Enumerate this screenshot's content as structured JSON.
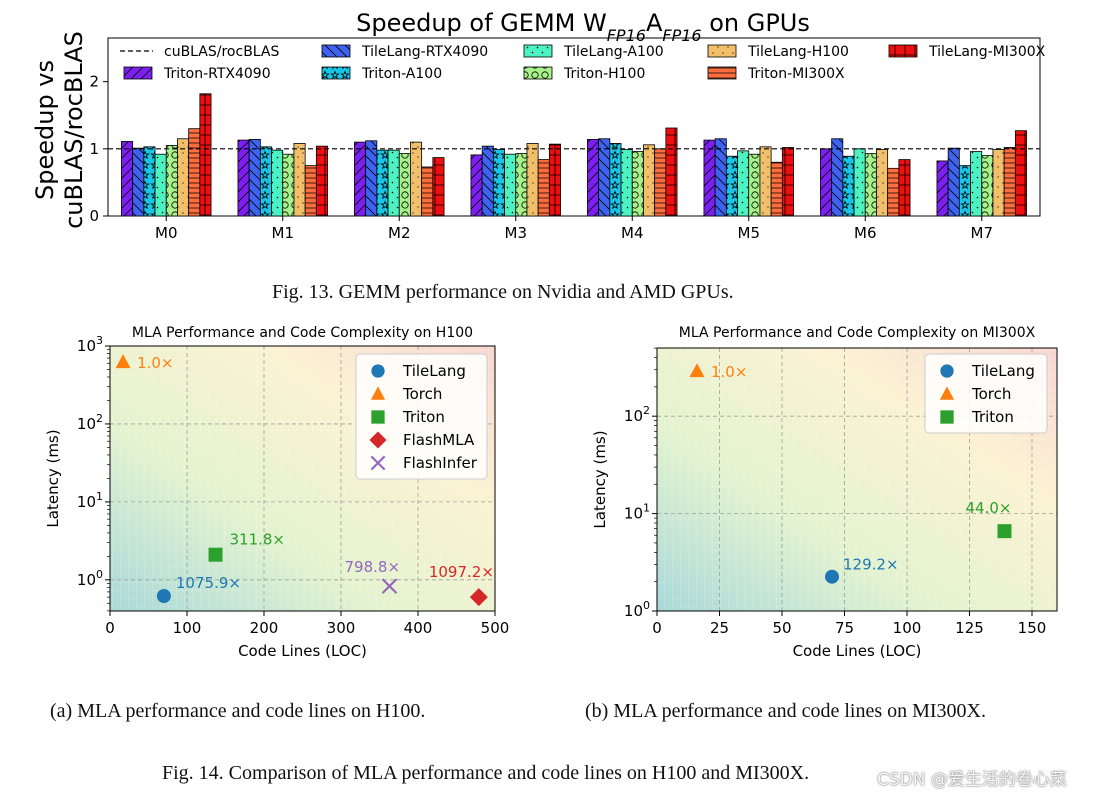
{
  "fig13": {
    "caption": "Fig. 13.  GEMM performance on Nvidia and AMD GPUs.",
    "chart_data": {
      "type": "bar",
      "title_prefix": "Speedup of GEMM W",
      "title_sub1": "FP16",
      "title_mid": "A",
      "title_sub2": "FP16",
      "title_suffix": " on GPUs",
      "ylabel_line1": "Speedup vs",
      "ylabel_line2": "cuBLAS/rocBLAS",
      "ylim": [
        0,
        2.65
      ],
      "yticks": [
        "0",
        "1",
        "2"
      ],
      "baseline": 1.0,
      "baseline_label": "cuBLAS/rocBLAS",
      "categories": [
        "M0",
        "M1",
        "M2",
        "M3",
        "M4",
        "M5",
        "M6",
        "M7"
      ],
      "series": [
        {
          "name": "Triton-RTX4090",
          "color": "#7e1ff2",
          "hatch": "diag",
          "values": [
            1.11,
            1.13,
            1.1,
            0.91,
            1.14,
            1.13,
            1.0,
            0.82
          ]
        },
        {
          "name": "TileLang-RTX4090",
          "color": "#3d63f0",
          "hatch": "back",
          "values": [
            1.01,
            1.14,
            1.12,
            1.04,
            1.15,
            1.15,
            1.15,
            1.01
          ]
        },
        {
          "name": "Triton-A100",
          "color": "#19c6e6",
          "hatch": "star",
          "values": [
            1.03,
            1.03,
            0.98,
            0.99,
            1.08,
            0.89,
            0.89,
            0.75
          ]
        },
        {
          "name": "TileLang-A100",
          "color": "#4bf2c2",
          "hatch": "dots",
          "values": [
            0.92,
            0.98,
            0.98,
            0.92,
            0.99,
            0.97,
            1.0,
            0.96
          ]
        },
        {
          "name": "Triton-H100",
          "color": "#a7f28a",
          "hatch": "circle",
          "values": [
            1.05,
            0.92,
            0.93,
            0.93,
            0.96,
            0.92,
            0.93,
            0.9
          ]
        },
        {
          "name": "TileLang-H100",
          "color": "#f2c06b",
          "hatch": "pdots",
          "values": [
            1.15,
            1.08,
            1.1,
            1.08,
            1.06,
            1.03,
            0.99,
            0.99
          ]
        },
        {
          "name": "Triton-MI300X",
          "color": "#fd6d3e",
          "hatch": "hline",
          "values": [
            1.3,
            0.75,
            0.73,
            0.84,
            1.0,
            0.8,
            0.71,
            1.02
          ]
        },
        {
          "name": "TileLang-MI300X",
          "color": "#ee1010",
          "hatch": "grid",
          "values": [
            1.82,
            1.04,
            0.87,
            1.07,
            1.31,
            1.02,
            0.84,
            1.27
          ]
        }
      ]
    }
  },
  "fig14": {
    "caption": "Fig. 14.  Comparison of MLA performance and code lines on H100 and MI300X.",
    "watermark": "CSDN @爱生活的卷心菜",
    "charts": [
      {
        "subcaption": "(a) MLA performance and code lines on H100.",
        "chart_data": {
          "type": "scatter",
          "title": "MLA Performance and Code Complexity on H100",
          "xlabel": "Code Lines (LOC)",
          "ylabel": "Latency (ms)",
          "xlim": [
            0,
            500
          ],
          "xticks": [
            "0",
            "100",
            "200",
            "300",
            "400",
            "500"
          ],
          "ylog_exp_range": [
            -0.4,
            3
          ],
          "yticks": [
            {
              "base": "10",
              "exp": "0",
              "value": 1
            },
            {
              "base": "10",
              "exp": "1",
              "value": 10
            },
            {
              "base": "10",
              "exp": "2",
              "value": 100
            },
            {
              "base": "10",
              "exp": "3",
              "value": 1000
            }
          ],
          "points": [
            {
              "name": "TileLang",
              "marker": "circle",
              "color": "#1f77b4",
              "x": 70,
              "y": 0.62,
              "label": "1075.9×"
            },
            {
              "name": "Torch",
              "marker": "triangle",
              "color": "#ff7f0e",
              "x": 17,
              "y": 620,
              "label": "1.0×"
            },
            {
              "name": "Triton",
              "marker": "square",
              "color": "#2ca02c",
              "x": 137,
              "y": 2.1,
              "label": "311.8×"
            },
            {
              "name": "FlashMLA",
              "marker": "diamond",
              "color": "#d62728",
              "x": 479,
              "y": 0.6,
              "label": "1097.2×"
            },
            {
              "name": "FlashInfer",
              "marker": "x",
              "color": "#9467bd",
              "x": 363,
              "y": 0.83,
              "label": "798.8×"
            }
          ]
        }
      },
      {
        "subcaption": "(b) MLA performance and code lines on MI300X.",
        "chart_data": {
          "type": "scatter",
          "title": "MLA Performance and Code Complexity on MI300X",
          "xlabel": "Code Lines (LOC)",
          "ylabel": "Latency (ms)",
          "xlim": [
            0,
            160
          ],
          "xticks": [
            "0",
            "25",
            "50",
            "75",
            "100",
            "125",
            "150"
          ],
          "ylog_exp_range": [
            0,
            2.7
          ],
          "yticks": [
            {
              "base": "10",
              "exp": "0",
              "value": 1
            },
            {
              "base": "10",
              "exp": "1",
              "value": 10
            },
            {
              "base": "10",
              "exp": "2",
              "value": 100
            }
          ],
          "points": [
            {
              "name": "TileLang",
              "marker": "circle",
              "color": "#1f77b4",
              "x": 70,
              "y": 2.25,
              "label": "129.2×"
            },
            {
              "name": "Torch",
              "marker": "triangle",
              "color": "#ff7f0e",
              "x": 16,
              "y": 290,
              "label": "1.0×"
            },
            {
              "name": "Triton",
              "marker": "square",
              "color": "#2ca02c",
              "x": 139,
              "y": 6.6,
              "label": "44.0×"
            }
          ]
        }
      }
    ]
  }
}
